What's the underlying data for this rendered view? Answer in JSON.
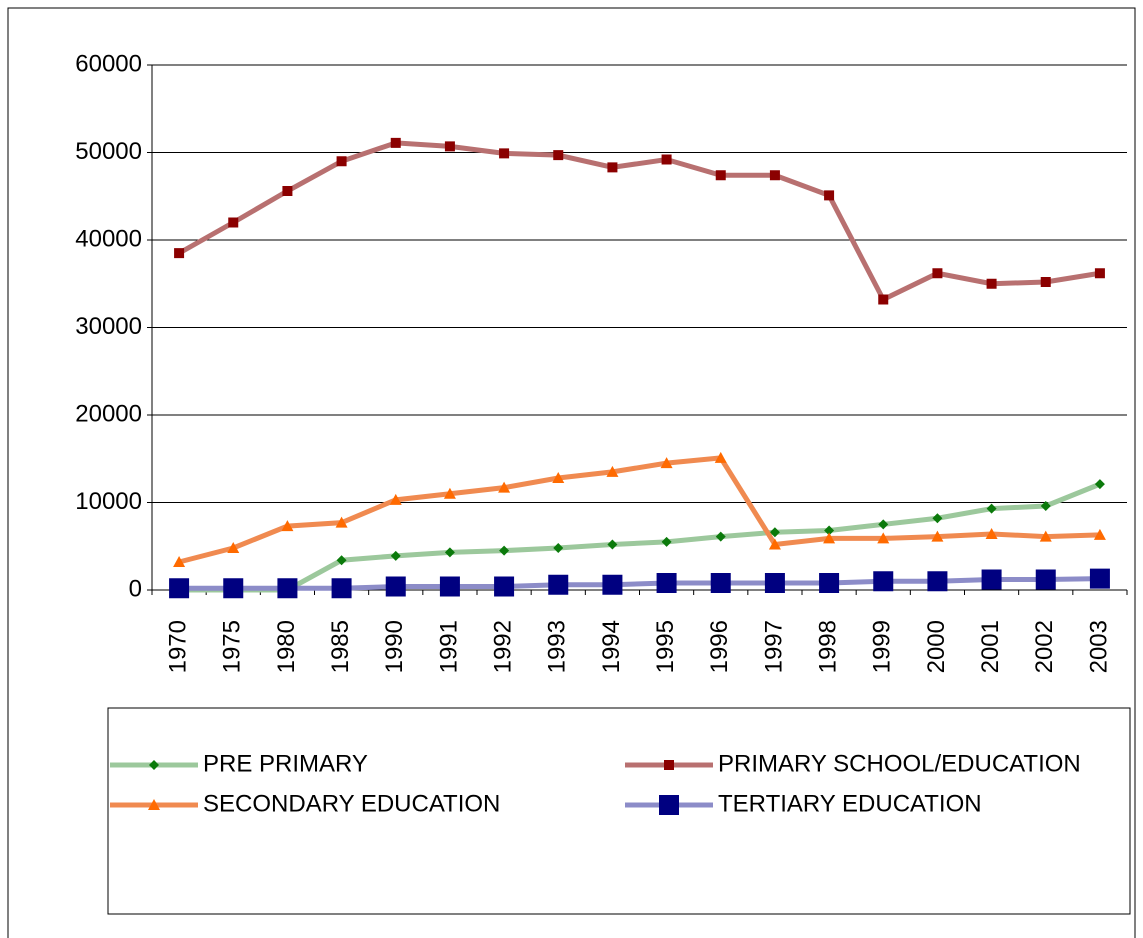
{
  "chart_data": {
    "type": "line",
    "categories": [
      "1970",
      "1975",
      "1980",
      "1985",
      "1990",
      "1991",
      "1992",
      "1993",
      "1994",
      "1995",
      "1996",
      "1997",
      "1998",
      "1999",
      "2000",
      "2001",
      "2002",
      "2003"
    ],
    "series": [
      {
        "name": "PRE PRIMARY",
        "color": "#0b7a0b",
        "line_color": "#9cc89c",
        "marker": "diamond",
        "values": [
          0,
          0,
          0,
          3400,
          3900,
          4300,
          4500,
          4800,
          5200,
          5500,
          6100,
          6600,
          6800,
          7500,
          8200,
          9300,
          9600,
          12100
        ]
      },
      {
        "name": "PRIMARY SCHOOL/EDUCATION",
        "color": "#8b0000",
        "line_color": "#b87070",
        "marker": "square",
        "values": [
          38500,
          42000,
          45600,
          49000,
          51100,
          50700,
          49900,
          49700,
          48300,
          49200,
          47400,
          47400,
          45100,
          33200,
          36200,
          35000,
          35200,
          36200
        ]
      },
      {
        "name": "SECONDARY EDUCATION",
        "color": "#ff6a00",
        "line_color": "#f08a50",
        "marker": "triangle",
        "values": [
          3200,
          4800,
          7300,
          7700,
          10300,
          11000,
          11700,
          12800,
          13500,
          14500,
          15100,
          5200,
          5900,
          5900,
          6100,
          6400,
          6100,
          6300
        ]
      },
      {
        "name": "TERTIARY EDUCATION",
        "color": "#000080",
        "line_color": "#8c8cc8",
        "marker": "bigsquare",
        "values": [
          200,
          200,
          200,
          200,
          400,
          400,
          400,
          600,
          600,
          800,
          800,
          800,
          800,
          1000,
          1000,
          1200,
          1200,
          1300
        ]
      }
    ],
    "ylim": [
      0,
      60000
    ],
    "yticks": [
      0,
      10000,
      20000,
      30000,
      40000,
      50000,
      60000
    ],
    "grid": true,
    "legend": "bottom"
  }
}
